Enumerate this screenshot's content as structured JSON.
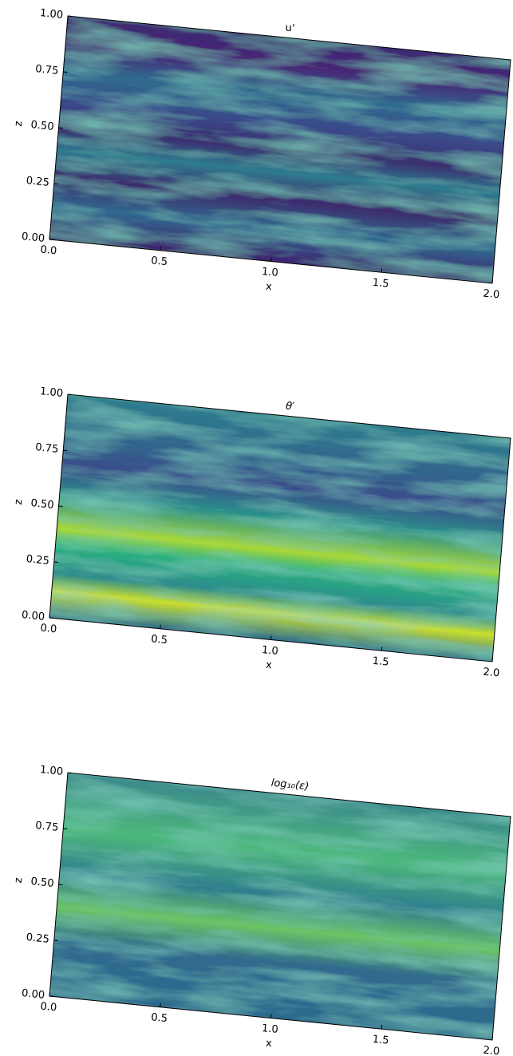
{
  "chart_data": [
    {
      "type": "heatmap",
      "title": "u'",
      "xlabel": "x",
      "ylabel": "z",
      "xlim": [
        0,
        2
      ],
      "ylim": [
        0,
        1
      ],
      "xticks": [
        {
          "value": 0,
          "label": "0.0"
        },
        0.5,
        {
          "value": 1,
          "label": "1.0"
        },
        1.5,
        {
          "value": 2,
          "label": "2.0"
        }
      ],
      "yticks": [
        {
          "value": 0,
          "label": "0.00"
        },
        0.25,
        {
          "value": 0.5,
          "label": "0.50"
        },
        0.75,
        {
          "value": 1,
          "label": "1.00"
        }
      ]
    },
    {
      "type": "heatmap",
      "title": "θ′",
      "xlabel": "x",
      "ylabel": "z",
      "xlim": [
        0,
        2
      ],
      "ylim": [
        0,
        1
      ],
      "xticks": [
        {
          "value": 0,
          "label": "0.0"
        },
        0.5,
        {
          "value": 1,
          "label": "1.0"
        },
        1.5,
        {
          "value": 2,
          "label": "2.0"
        }
      ],
      "yticks": [
        {
          "value": 0,
          "label": "0.00"
        },
        0.25,
        {
          "value": 0.5,
          "label": "0.50"
        },
        0.75,
        {
          "value": 1,
          "label": "1.00"
        }
      ]
    },
    {
      "type": "heatmap",
      "title": "log₁₀(ε)",
      "xlabel": "x",
      "ylabel": "z",
      "xlim": [
        0,
        2
      ],
      "ylim": [
        0,
        1
      ],
      "xticks": [
        {
          "value": 0,
          "label": "0.0"
        },
        0.5,
        {
          "value": 1,
          "label": "1.0"
        },
        1.5,
        {
          "value": 2,
          "label": "2.0"
        }
      ],
      "yticks": [
        {
          "value": 0,
          "label": "0.00"
        },
        0.25,
        {
          "value": 0.5,
          "label": "0.50"
        },
        0.75,
        {
          "value": 1,
          "label": "1.00"
        }
      ]
    }
  ]
}
